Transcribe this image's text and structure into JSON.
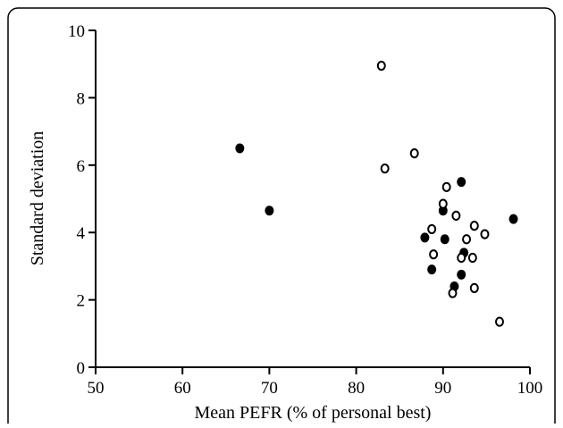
{
  "chart_data": {
    "type": "scatter",
    "title": "",
    "xlabel": "Mean PEFR (% of personal best)",
    "ylabel": "Standard deviation",
    "xlim": [
      50,
      100
    ],
    "ylim": [
      0,
      10
    ],
    "xticks": [
      50,
      60,
      70,
      80,
      90,
      100
    ],
    "yticks": [
      0,
      2,
      4,
      6,
      8,
      10
    ],
    "grid": false,
    "frame": "rounded border",
    "series": [
      {
        "marker": "filled-circle",
        "color": "#000000",
        "points": [
          {
            "x": 66.6,
            "y": 6.5
          },
          {
            "x": 70.0,
            "y": 4.65
          },
          {
            "x": 87.9,
            "y": 3.85
          },
          {
            "x": 88.7,
            "y": 2.9
          },
          {
            "x": 90.0,
            "y": 4.65
          },
          {
            "x": 90.2,
            "y": 3.8
          },
          {
            "x": 91.3,
            "y": 2.4
          },
          {
            "x": 92.1,
            "y": 5.5
          },
          {
            "x": 92.1,
            "y": 2.75
          },
          {
            "x": 92.4,
            "y": 3.4
          },
          {
            "x": 98.1,
            "y": 4.4
          }
        ]
      },
      {
        "marker": "open-circle",
        "color": "#000000",
        "points": [
          {
            "x": 82.9,
            "y": 8.95
          },
          {
            "x": 83.3,
            "y": 5.9
          },
          {
            "x": 86.7,
            "y": 6.35
          },
          {
            "x": 88.7,
            "y": 4.1
          },
          {
            "x": 88.9,
            "y": 3.35
          },
          {
            "x": 90.0,
            "y": 4.85
          },
          {
            "x": 90.4,
            "y": 5.35
          },
          {
            "x": 91.1,
            "y": 2.2
          },
          {
            "x": 91.5,
            "y": 4.5
          },
          {
            "x": 92.1,
            "y": 3.25
          },
          {
            "x": 92.7,
            "y": 3.8
          },
          {
            "x": 93.4,
            "y": 3.25
          },
          {
            "x": 93.6,
            "y": 4.2
          },
          {
            "x": 93.6,
            "y": 2.35
          },
          {
            "x": 94.8,
            "y": 3.95
          },
          {
            "x": 96.5,
            "y": 1.35
          }
        ]
      }
    ]
  }
}
